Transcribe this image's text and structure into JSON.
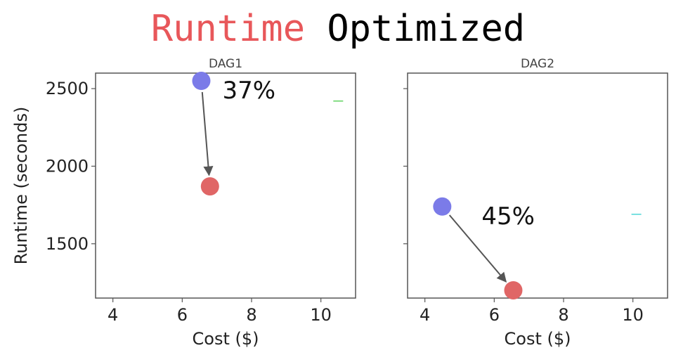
{
  "title": {
    "highlight": "Runtime",
    "rest": "Optimized",
    "highlight_color": "#e8575a",
    "rest_color": "#000000"
  },
  "colors": {
    "before": "#7b7be8",
    "after": "#e06666",
    "arrow": "#555555",
    "axes": "#555555",
    "marker_dag1": "#5fd25f",
    "marker_dag2": "#4dd6d6"
  },
  "chart_data": [
    {
      "type": "scatter",
      "title": "DAG1",
      "xlabel": "Cost ($)",
      "ylabel": "Runtime (seconds)",
      "xlim": [
        3.5,
        11
      ],
      "ylim": [
        1150,
        2600
      ],
      "xticks": [
        4,
        6,
        8,
        10
      ],
      "yticks": [
        1500,
        2000,
        2500
      ],
      "points": [
        {
          "role": "before",
          "x": 6.55,
          "y": 2550
        },
        {
          "role": "after",
          "x": 6.8,
          "y": 1870
        }
      ],
      "annotation": "37%",
      "marker": {
        "x": 10.5,
        "y": 2420
      }
    },
    {
      "type": "scatter",
      "title": "DAG2",
      "xlabel": "Cost ($)",
      "ylabel": "",
      "xlim": [
        3.5,
        11
      ],
      "ylim": [
        1150,
        2600
      ],
      "xticks": [
        4,
        6,
        8,
        10
      ],
      "yticks": [],
      "points": [
        {
          "role": "before",
          "x": 4.5,
          "y": 1740
        },
        {
          "role": "after",
          "x": 6.55,
          "y": 1200
        }
      ],
      "annotation": "45%",
      "marker": {
        "x": 10.1,
        "y": 1690
      }
    }
  ]
}
